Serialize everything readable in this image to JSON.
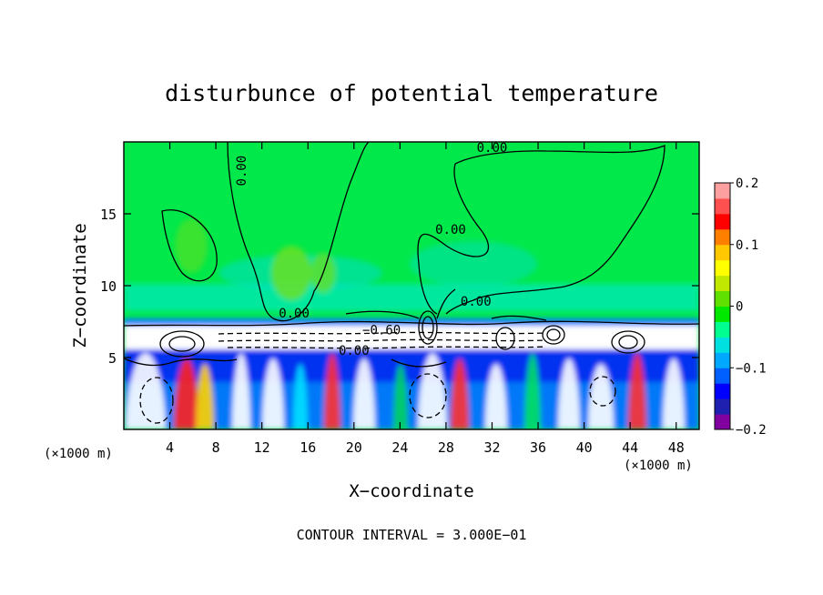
{
  "chart_data": {
    "type": "heatmap",
    "title": "disturbunce of potential temperature",
    "xlabel": "X−coordinate",
    "ylabel": "Z−coordinate",
    "x_unit_left": "(×1000 m)",
    "x_unit_right": "(×1000 m)",
    "footer": "CONTOUR INTERVAL = 3.000E−01",
    "xlim": [
      0,
      50
    ],
    "ylim": [
      0,
      20
    ],
    "x_ticks": [
      {
        "value": 4,
        "label": "4"
      },
      {
        "value": 8,
        "label": "8"
      },
      {
        "value": 12,
        "label": "12"
      },
      {
        "value": 16,
        "label": "16"
      },
      {
        "value": 20,
        "label": "20"
      },
      {
        "value": 24,
        "label": "24"
      },
      {
        "value": 28,
        "label": "28"
      },
      {
        "value": 32,
        "label": "32"
      },
      {
        "value": 36,
        "label": "36"
      },
      {
        "value": 40,
        "label": "40"
      },
      {
        "value": 44,
        "label": "44"
      },
      {
        "value": 48,
        "label": "48"
      }
    ],
    "y_ticks": [
      {
        "value": 5,
        "label": "5"
      },
      {
        "value": 10,
        "label": "10"
      },
      {
        "value": 15,
        "label": "15"
      }
    ],
    "colorbar": {
      "min": -0.2,
      "max": 0.2,
      "ticks": [
        {
          "value": 0.2,
          "label": "0.2"
        },
        {
          "value": 0.1,
          "label": "0.1"
        },
        {
          "value": 0,
          "label": "0"
        },
        {
          "value": -0.1,
          "label": "−0.1"
        },
        {
          "value": -0.2,
          "label": "−0.2"
        }
      ],
      "colors": [
        "#8000a0",
        "#2020b0",
        "#0000ff",
        "#0060ff",
        "#00a8ff",
        "#00e0e0",
        "#00ff90",
        "#00e800",
        "#60e000",
        "#c0e800",
        "#ffff00",
        "#ffc800",
        "#ff8000",
        "#ff0000",
        "#ff5050",
        "#ffa0a0"
      ]
    },
    "contour_labels": [
      {
        "x": 32.0,
        "z": 19.3,
        "label": "0.00"
      },
      {
        "x": 10.6,
        "z": 18.0,
        "label": "0.00",
        "rotate": -90
      },
      {
        "x": 28.4,
        "z": 13.6,
        "label": "0.00"
      },
      {
        "x": 30.6,
        "z": 8.6,
        "label": "0.00"
      },
      {
        "x": 14.8,
        "z": 7.8,
        "label": "0.00"
      },
      {
        "x": 22.4,
        "z": 6.6,
        "label": "−0.60"
      },
      {
        "x": 20.0,
        "z": 5.2,
        "label": "0.00"
      }
    ]
  }
}
